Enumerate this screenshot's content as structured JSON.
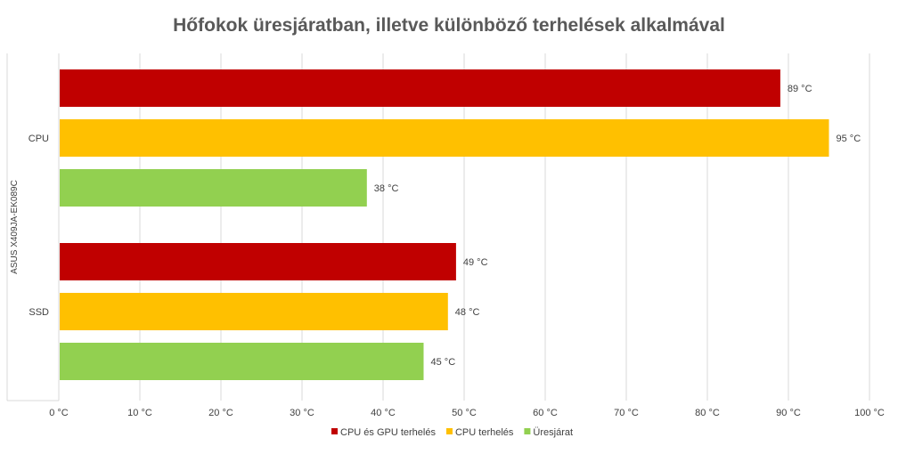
{
  "chart_data": {
    "type": "bar",
    "orientation": "horizontal",
    "title": "Hőfokok üresjáratban, illetve különböző terhelések alkalmával",
    "group_label": "ASUS X409JA-EK089C",
    "categories": [
      "CPU",
      "SSD"
    ],
    "series": [
      {
        "name": "CPU és GPU terhelés",
        "values": [
          89,
          49
        ],
        "color": "#c00000"
      },
      {
        "name": "CPU terhelés",
        "values": [
          95,
          48
        ],
        "color": "#ffc000"
      },
      {
        "name": "Üresjárat",
        "values": [
          38,
          45
        ],
        "color": "#92d050"
      }
    ],
    "unit": "°C",
    "data_labels": [
      [
        "89 °C",
        "95 °C",
        "38 °C"
      ],
      [
        "49 °C",
        "48 °C",
        "45 °C"
      ]
    ],
    "x_ticks": [
      "0 °C",
      "10 °C",
      "20 °C",
      "30 °C",
      "40 °C",
      "50 °C",
      "60 °C",
      "70 °C",
      "80 °C",
      "90 °C",
      "100 °C"
    ],
    "xlim": [
      0,
      100
    ],
    "grid": true,
    "legend_position": "bottom"
  }
}
